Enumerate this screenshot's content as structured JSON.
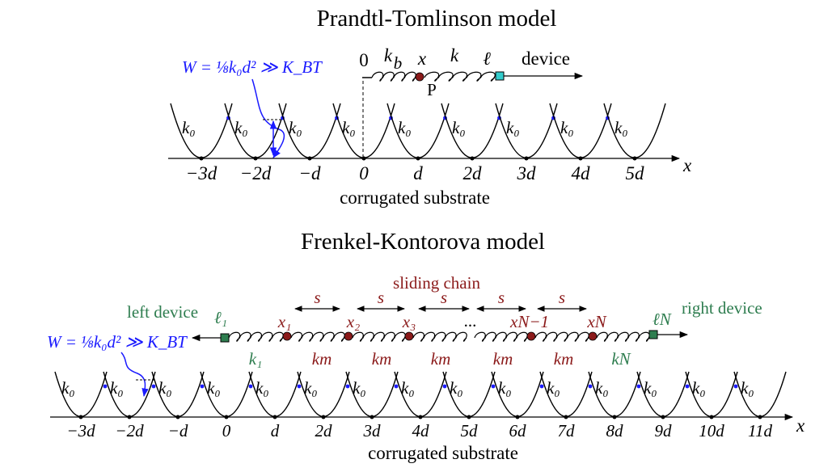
{
  "top": {
    "title": "Prandtl-Tomlinson model",
    "energy_note": "W = ⅛k₀d² ≫ K_BT",
    "spring_labels": [
      "0",
      "k",
      "b",
      "x",
      "k",
      "ℓ"
    ],
    "device": "device",
    "particle": "P",
    "well_label": "k₀",
    "ticks": [
      "−3d",
      "−2d",
      "−d",
      "0",
      "d",
      "2d",
      "3d",
      "4d",
      "5d"
    ],
    "axis": "x",
    "substrate": "corrugated substrate",
    "colors": {
      "blue": "#1a1aff",
      "particle": "#8b1a1a",
      "device": "#33cccc"
    }
  },
  "bottom": {
    "title": "Frenkel-Kontorova model",
    "energy_note": "W = ⅛k₀d² ≫ K_BT",
    "sliding_chain": "sliding chain",
    "spacing": "s",
    "left_device": "left device",
    "right_device": "right device",
    "ell1": "ℓ₁",
    "ellN": "ℓN",
    "x_labels": [
      "x₁",
      "x₂",
      "x₃",
      "...",
      "xN−1",
      "xN"
    ],
    "k_labels": [
      "k₁",
      "km",
      "km",
      "km",
      "km",
      "km",
      "kN"
    ],
    "well_label": "k₀",
    "ticks": [
      "−3d",
      "−2d",
      "−d",
      "0",
      "d",
      "2d",
      "3d",
      "4d",
      "5d",
      "6d",
      "7d",
      "8d",
      "9d",
      "10d",
      "11d"
    ],
    "axis": "x",
    "substrate": "corrugated substrate",
    "colors": {
      "device": "#2e7d4f",
      "particle": "#8b1a1a",
      "blue": "#1a1aff"
    }
  }
}
